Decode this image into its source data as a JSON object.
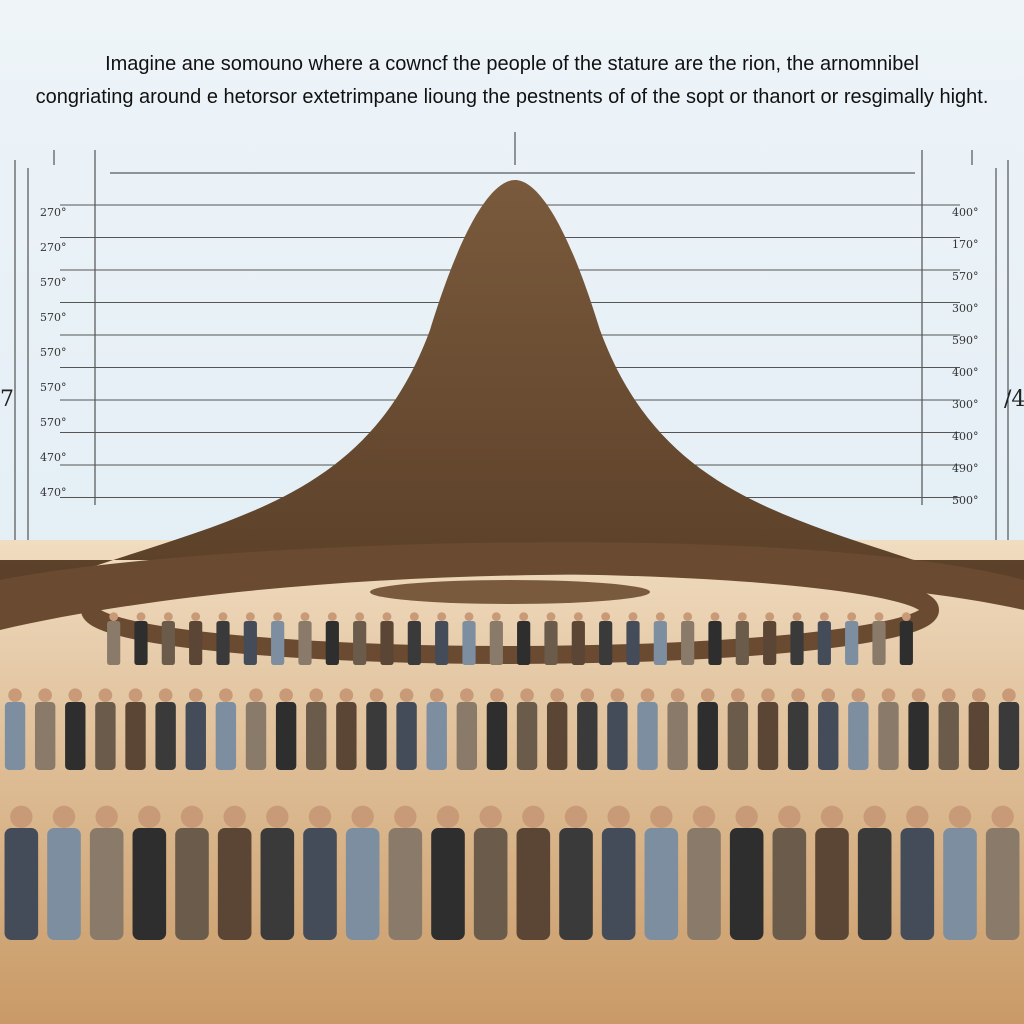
{
  "caption": {
    "line1": "Imagine ane somouno where a cowncf the people of the stature are the rion, the arnomnibel",
    "line2": "congriating around e hetorsor extetrimpane lioung the pestnents of of the sopt or thanort or resgimally hight."
  },
  "left_labels": [
    "270°",
    "270°",
    "570°",
    "570°",
    "570°",
    "570°",
    "570°",
    "470°",
    "470°"
  ],
  "right_labels": [
    "400°",
    "170°",
    "570°",
    "300°",
    "590°",
    "400°",
    "300°",
    "400°",
    "490°",
    "500°"
  ],
  "left_edge": "7",
  "right_edge": "/4"
}
